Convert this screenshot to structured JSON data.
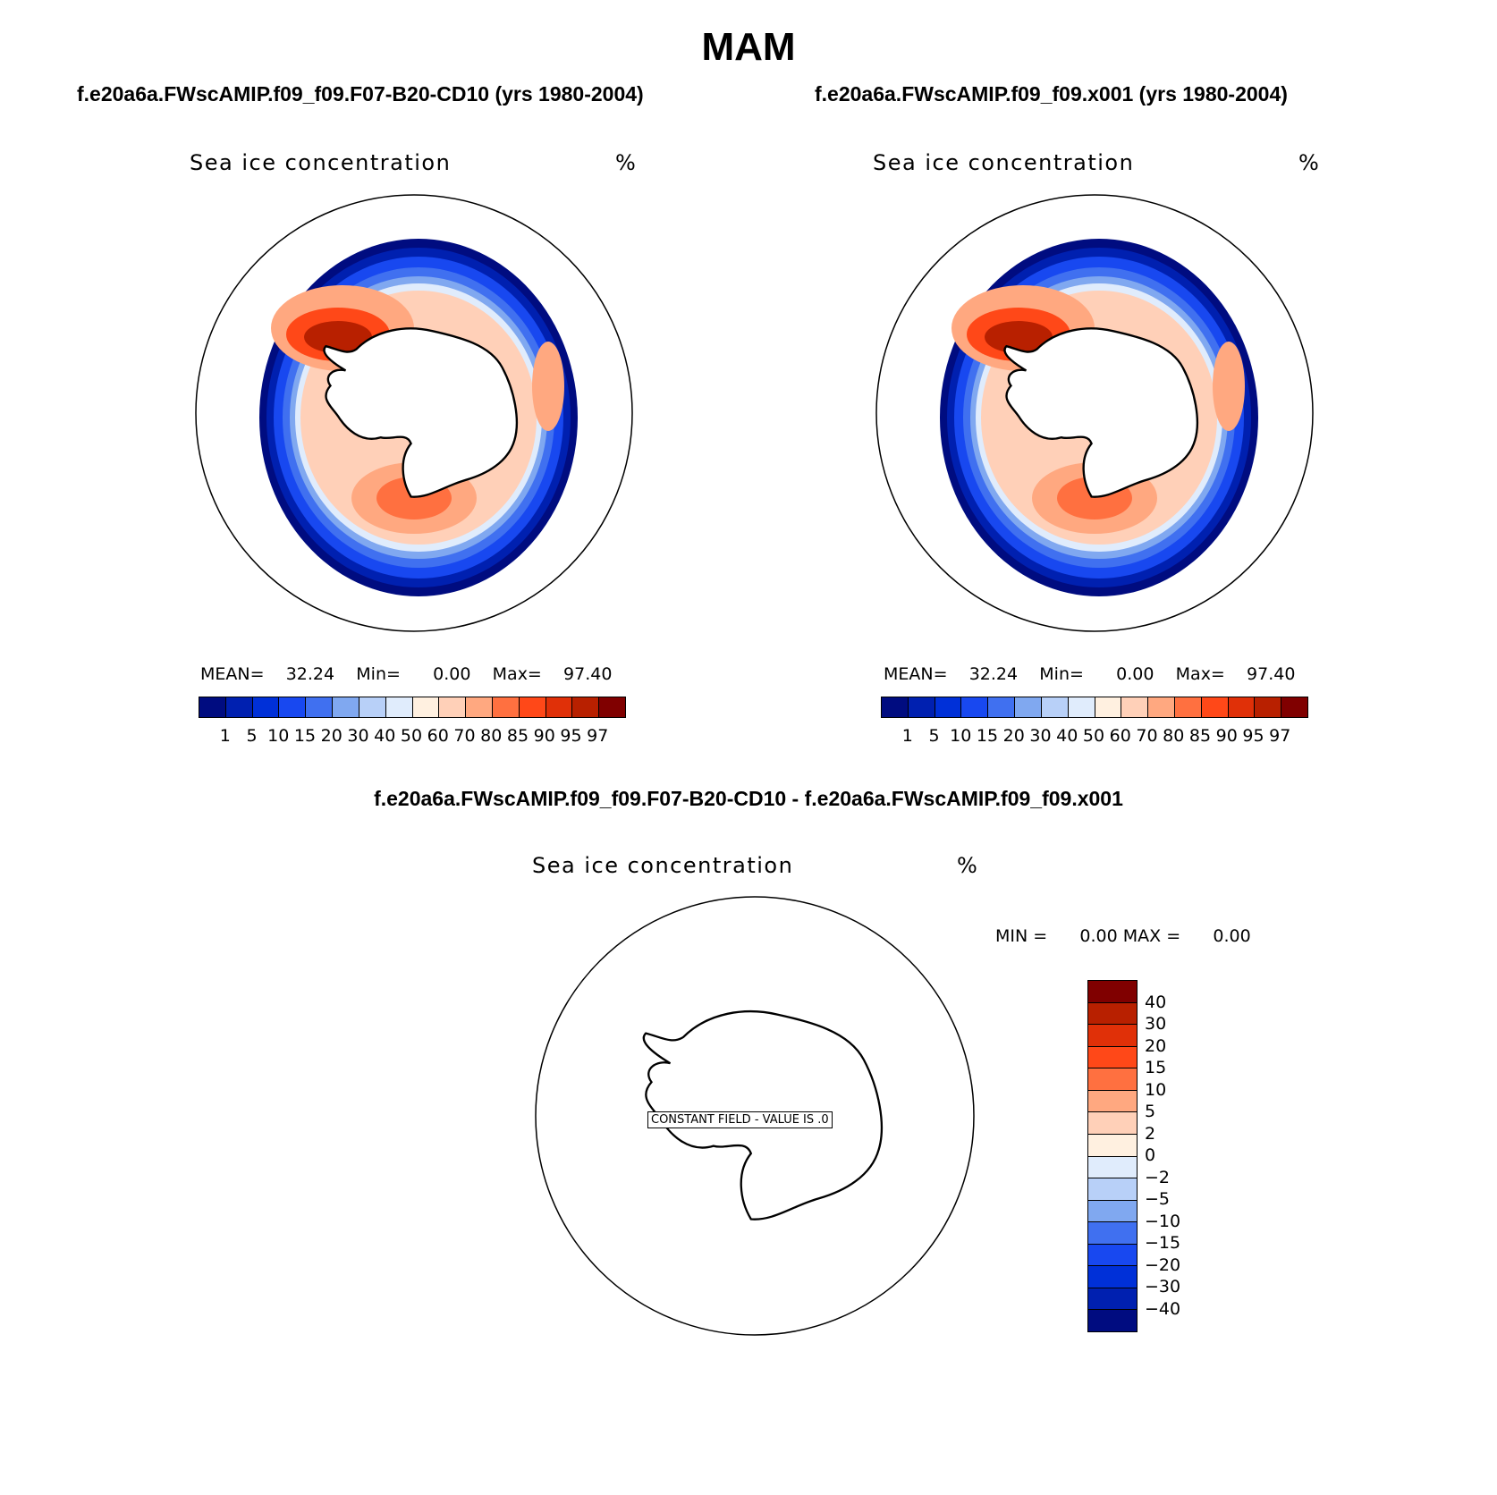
{
  "main_title": "MAM",
  "panels": {
    "left": {
      "case_title": "f.e20a6a.FWscAMIP.f09_f09.F07-B20-CD10 (yrs 1980-2004)",
      "variable": "Sea ice concentration",
      "units": "%",
      "mean_label": "MEAN=",
      "mean": "32.24",
      "min_label": "Min=",
      "min": "0.00",
      "max_label": "Max=",
      "max": "97.40"
    },
    "right": {
      "case_title": "f.e20a6a.FWscAMIP.f09_f09.x001 (yrs 1980-2004)",
      "variable": "Sea ice concentration",
      "units": "%",
      "mean_label": "MEAN=",
      "mean": "32.24",
      "min_label": "Min=",
      "min": "0.00",
      "max_label": "Max=",
      "max": "97.40"
    },
    "diff": {
      "title": "f.e20a6a.FWscAMIP.f09_f09.F07-B20-CD10 - f.e20a6a.FWscAMIP.f09_f09.x001",
      "variable": "Sea ice concentration",
      "units": "%",
      "min_label": "MIN =",
      "min": "0.00",
      "max_label": "MAX =",
      "max": "0.00",
      "constant_field": "CONSTANT FIELD - VALUE IS .0"
    }
  },
  "colorbar": {
    "levels": [
      "1",
      "5",
      "10",
      "15",
      "20",
      "30",
      "40",
      "50",
      "60",
      "70",
      "80",
      "85",
      "90",
      "95",
      "97"
    ],
    "colors": [
      "#000c80",
      "#0020b0",
      "#0030d8",
      "#1848f0",
      "#4070f0",
      "#80a8f0",
      "#b8d0f8",
      "#e0ecfc",
      "#fff0e0",
      "#ffd0b8",
      "#ffa880",
      "#ff7040",
      "#ff4818",
      "#e03008",
      "#b82000",
      "#800000"
    ]
  },
  "diff_colorbar": {
    "levels": [
      "40",
      "30",
      "20",
      "15",
      "10",
      "5",
      "2",
      "0",
      "−2",
      "−5",
      "−10",
      "−15",
      "−20",
      "−30",
      "−40"
    ],
    "colors": [
      "#800000",
      "#b82000",
      "#e03008",
      "#ff4818",
      "#ff7040",
      "#ffa880",
      "#ffd0b8",
      "#fff0e0",
      "#e0ecfc",
      "#b8d0f8",
      "#80a8f0",
      "#4070f0",
      "#1848f0",
      "#0030d8",
      "#0020b0",
      "#000c80"
    ]
  },
  "chart_data": [
    {
      "type": "heatmap",
      "title": "Sea ice concentration",
      "subtitle": "f.e20a6a.FWscAMIP.f09_f09.F07-B20-CD10 (yrs 1980-2004)",
      "projection": "south polar stereographic",
      "units": "%",
      "mean": 32.24,
      "min": 0.0,
      "max": 97.4,
      "contour_levels": [
        1,
        5,
        10,
        15,
        20,
        30,
        40,
        50,
        60,
        70,
        80,
        85,
        90,
        95,
        97
      ]
    },
    {
      "type": "heatmap",
      "title": "Sea ice concentration",
      "subtitle": "f.e20a6a.FWscAMIP.f09_f09.x001 (yrs 1980-2004)",
      "projection": "south polar stereographic",
      "units": "%",
      "mean": 32.24,
      "min": 0.0,
      "max": 97.4,
      "contour_levels": [
        1,
        5,
        10,
        15,
        20,
        30,
        40,
        50,
        60,
        70,
        80,
        85,
        90,
        95,
        97
      ]
    },
    {
      "type": "heatmap",
      "title": "Sea ice concentration",
      "subtitle": "f.e20a6a.FWscAMIP.f09_f09.F07-B20-CD10 - f.e20a6a.FWscAMIP.f09_f09.x001",
      "projection": "south polar stereographic",
      "units": "%",
      "min": 0.0,
      "max": 0.0,
      "annotation": "CONSTANT FIELD - VALUE IS .0",
      "contour_levels": [
        -40,
        -30,
        -20,
        -15,
        -10,
        -5,
        -2,
        0,
        2,
        5,
        10,
        15,
        20,
        30,
        40
      ]
    }
  ]
}
